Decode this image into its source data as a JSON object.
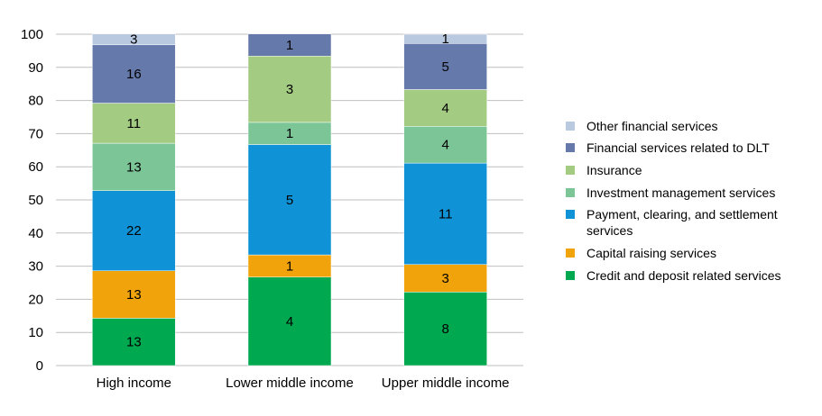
{
  "chart_data": {
    "type": "bar",
    "stacked": true,
    "categories": [
      "High income",
      "Lower middle income",
      "Upper middle income"
    ],
    "ylim": [
      0,
      100
    ],
    "yticks": [
      0,
      10,
      20,
      30,
      40,
      50,
      60,
      70,
      80,
      90,
      100
    ],
    "grid": true,
    "legend_position": "right",
    "series": [
      {
        "name": "Credit and deposit related services",
        "color": "#00a84f",
        "percent": [
          14.3,
          26.7,
          22.2
        ],
        "labels": [
          "13",
          "4",
          "8"
        ]
      },
      {
        "name": "Capital raising services",
        "color": "#f0a30a",
        "percent": [
          14.3,
          6.7,
          8.3
        ],
        "labels": [
          "13",
          "1",
          "3"
        ]
      },
      {
        "name": "Payment, clearing, and settlement services",
        "color": "#0f93d6",
        "percent": [
          24.2,
          33.3,
          30.6
        ],
        "labels": [
          "22",
          "5",
          "11"
        ]
      },
      {
        "name": "Investment management services",
        "color": "#7cc597",
        "percent": [
          14.3,
          6.7,
          11.1
        ],
        "labels": [
          "13",
          "1",
          "4"
        ]
      },
      {
        "name": "Insurance",
        "color": "#a3cb82",
        "percent": [
          12.1,
          20.0,
          11.1
        ],
        "labels": [
          "11",
          "3",
          "4"
        ]
      },
      {
        "name": "Financial services related to DLT",
        "color": "#6679ab",
        "percent": [
          17.6,
          6.7,
          13.9
        ],
        "labels": [
          "16",
          "1",
          "5"
        ]
      },
      {
        "name": "Other financial services",
        "color": "#b9c9e0",
        "percent": [
          3.3,
          0.0,
          2.8
        ],
        "labels": [
          "3",
          "",
          "1"
        ]
      }
    ]
  }
}
